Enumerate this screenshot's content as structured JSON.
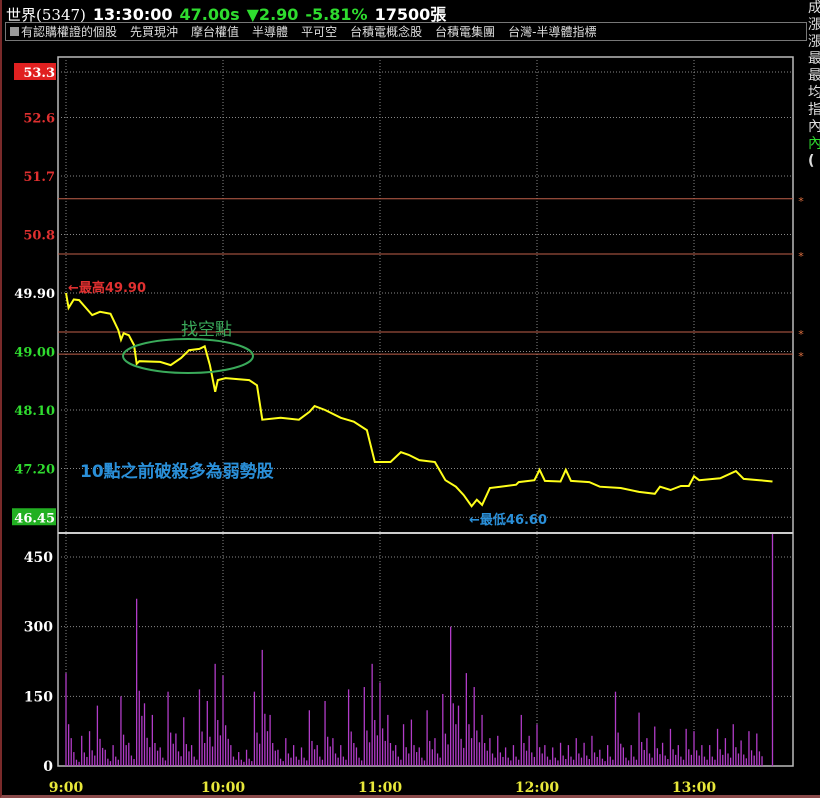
{
  "header": {
    "name": "世界(5347)",
    "time": "13:30:00",
    "price": "47.00s",
    "change": "▼2.90",
    "pct": "-5.81%",
    "volume": "17500張"
  },
  "tags": [
    "有認購權證的個股",
    "先買現沖",
    "摩台權值",
    "半導體",
    "平可空",
    "台積電概念股",
    "台積電集團",
    "台灣-半導體指標"
  ],
  "side_labels": [
    "成",
    "漲",
    "漲",
    "最",
    "最",
    "均",
    "指",
    "內",
    "內",
    "("
  ],
  "colors": {
    "price_line": "#ffff1a",
    "volume_bar": "#b23cc8",
    "ref_line": "#c0604a",
    "up": "#e03030",
    "down": "#2fdc2f",
    "annotation_blue": "#2a8fd8",
    "annotation_green": "#3aaa5a"
  },
  "annotations": {
    "high": "←最高49.90",
    "low": "←最低46.60",
    "short_point": "找空點",
    "note": "10點之前破殺多為弱勢股"
  },
  "chart_data": [
    {
      "type": "line",
      "name": "price",
      "ylim": [
        46.45,
        53.3
      ],
      "yticks": [
        {
          "label": "53.3",
          "value": 53.3,
          "style": "limit-up"
        },
        {
          "label": "52.6",
          "value": 52.6,
          "style": "up"
        },
        {
          "label": "51.7",
          "value": 51.7,
          "style": "up"
        },
        {
          "label": "50.8",
          "value": 50.8,
          "style": "up"
        },
        {
          "label": "49.90",
          "value": 49.9,
          "style": "ref"
        },
        {
          "label": "49.00",
          "value": 49.0,
          "style": "down"
        },
        {
          "label": "48.10",
          "value": 48.1,
          "style": "down"
        },
        {
          "label": "47.20",
          "value": 47.2,
          "style": "down"
        },
        {
          "label": "46.45",
          "value": 46.45,
          "style": "limit-down"
        }
      ],
      "reference_lines": [
        51.35,
        50.5,
        49.3,
        48.96
      ],
      "x": [
        "9:00",
        "9:01",
        "9:03",
        "9:05",
        "9:10",
        "9:13",
        "9:17",
        "9:20",
        "9:21",
        "9:22",
        "9:24",
        "9:26",
        "9:27",
        "9:28",
        "9:36",
        "9:40",
        "9:44",
        "9:47",
        "9:51",
        "9:53",
        "9:55",
        "9:57",
        "9:58",
        "10:01",
        "10:10",
        "10:13",
        "10:15",
        "10:22",
        "10:29",
        "10:33",
        "10:35",
        "10:39",
        "10:45",
        "10:50",
        "10:55",
        "10:58",
        "11:04",
        "11:08",
        "11:11",
        "11:15",
        "11:21",
        "11:25",
        "11:29",
        "11:32",
        "11:35",
        "11:37",
        "11:39",
        "11:42",
        "11:46",
        "11:52",
        "11:53",
        "11:59",
        "12:01",
        "12:03",
        "12:09",
        "12:11",
        "12:13",
        "12:20",
        "12:24",
        "12:32",
        "12:39",
        "12:45",
        "12:47",
        "12:51",
        "12:55",
        "12:58",
        "13:00",
        "13:02",
        "13:10",
        "13:16",
        "13:19",
        "13:25",
        "13:30"
      ],
      "y": [
        49.9,
        49.67,
        49.8,
        49.79,
        49.56,
        49.61,
        49.58,
        49.33,
        49.18,
        49.28,
        49.25,
        49.1,
        48.81,
        48.85,
        48.84,
        48.79,
        48.9,
        49.02,
        49.04,
        49.08,
        48.79,
        48.38,
        48.56,
        48.59,
        48.56,
        48.48,
        47.95,
        47.98,
        47.95,
        48.07,
        48.16,
        48.1,
        47.98,
        47.92,
        47.79,
        47.3,
        47.3,
        47.45,
        47.41,
        47.33,
        47.3,
        47.02,
        46.92,
        46.79,
        46.62,
        46.72,
        46.64,
        46.9,
        46.92,
        46.95,
        46.99,
        47.02,
        47.18,
        47.01,
        47.0,
        47.18,
        47.01,
        46.99,
        46.92,
        46.9,
        46.84,
        46.81,
        46.92,
        46.87,
        46.93,
        46.93,
        47.08,
        47.02,
        47.05,
        47.16,
        47.04,
        47.02,
        47.0
      ]
    },
    {
      "type": "bar",
      "name": "volume",
      "ylim": [
        0,
        500
      ],
      "yticks": [
        "0",
        "150",
        "300",
        "450"
      ],
      "xticks": [
        "9:00",
        "10:00",
        "11:00",
        "12:00",
        "13:00"
      ],
      "x_minutes_from_open": [
        0,
        3,
        6,
        9,
        12,
        15,
        18,
        21,
        24,
        27,
        30,
        33,
        36,
        39,
        42,
        45,
        48,
        51,
        54,
        57,
        60,
        63,
        66,
        69,
        72,
        75,
        78,
        81,
        84,
        87,
        90,
        93,
        96,
        99,
        102,
        105,
        108,
        111,
        114,
        117,
        120,
        123,
        126,
        129,
        132,
        135,
        138,
        141,
        144,
        147,
        150,
        153,
        156,
        159,
        162,
        165,
        168,
        171,
        174,
        177,
        180,
        183,
        186,
        189,
        192,
        195,
        198,
        201,
        204,
        207,
        210,
        213,
        216,
        219,
        222,
        225,
        228,
        231,
        234,
        237,
        240,
        243,
        246,
        249,
        252,
        255,
        258,
        261,
        264,
        270
      ],
      "values": [
        200,
        30,
        65,
        75,
        130,
        35,
        45,
        150,
        50,
        360,
        135,
        110,
        40,
        160,
        70,
        105,
        45,
        165,
        140,
        220,
        195,
        45,
        30,
        35,
        160,
        250,
        110,
        35,
        60,
        45,
        40,
        120,
        45,
        140,
        60,
        45,
        165,
        40,
        170,
        220,
        180,
        110,
        45,
        90,
        100,
        40,
        120,
        60,
        155,
        300,
        130,
        200,
        170,
        110,
        60,
        65,
        40,
        45,
        110,
        65,
        90,
        45,
        40,
        50,
        45,
        60,
        50,
        65,
        35,
        45,
        160,
        40,
        45,
        115,
        60,
        85,
        50,
        80,
        45,
        80,
        75,
        45,
        45,
        80,
        60,
        90,
        55,
        75,
        70,
        500
      ]
    }
  ]
}
